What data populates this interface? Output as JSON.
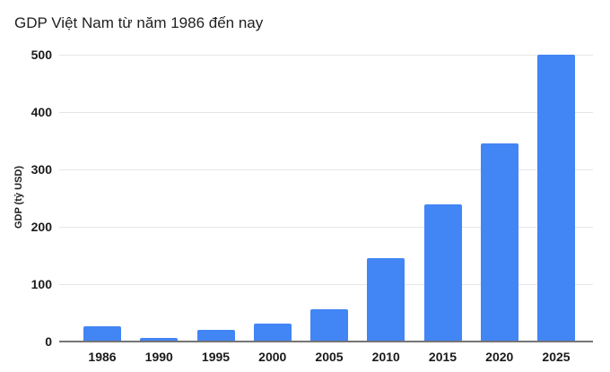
{
  "title": "GDP Việt Nam từ năm 1986 đến nay",
  "y_axis": {
    "title": "GDP (tỷ USD)",
    "ticks": [
      "0",
      "100",
      "200",
      "300",
      "400",
      "500"
    ]
  },
  "chart_data": {
    "type": "bar",
    "title": "GDP Việt Nam từ năm 1986 đến nay",
    "xlabel": "",
    "ylabel": "GDP (tỷ USD)",
    "categories": [
      "1986",
      "1990",
      "1995",
      "2000",
      "2005",
      "2010",
      "2015",
      "2020",
      "2025"
    ],
    "values": [
      26,
      7,
      20,
      31,
      57,
      145,
      239,
      346,
      500
    ],
    "ylim": [
      0,
      500
    ],
    "yticks": [
      0,
      100,
      200,
      300,
      400,
      500
    ],
    "grid": true,
    "legend_position": "none",
    "series_color": "#4285f4"
  },
  "colors": {
    "bar": "#4285f4",
    "gridline": "#e6e6e6",
    "axis_line": "#757575",
    "text": "#212121"
  }
}
